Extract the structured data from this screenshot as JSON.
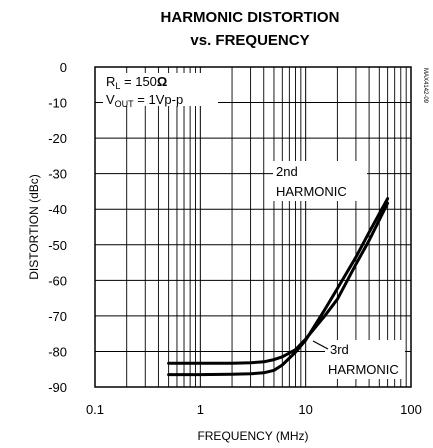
{
  "chart_data": {
    "type": "line",
    "title_line1": "HARMONIC DISTORTION",
    "title_line2": "vs. FREQUENCY",
    "xlabel": "FREQUENCY (MHz)",
    "ylabel": "DISTORTION (dBc)",
    "x_scale": "log",
    "xlim": [
      0.1,
      100
    ],
    "ylim": [
      -90,
      0
    ],
    "x_ticks": [
      "0.1",
      "1",
      "10",
      "100"
    ],
    "x_tick_values": [
      0.1,
      1,
      10,
      100
    ],
    "y_ticks": [
      "0",
      "-10",
      "-20",
      "-30",
      "-40",
      "-50",
      "-60",
      "-70",
      "-80",
      "-90"
    ],
    "y_tick_values": [
      0,
      -10,
      -20,
      -30,
      -40,
      -50,
      -60,
      -70,
      -80,
      -90
    ],
    "grid": true,
    "conditions": {
      "rl": {
        "main": "R",
        "sub": "L",
        "rest": " = 150",
        "unit": "Ω"
      },
      "vout": {
        "main": "V",
        "sub": "OUT",
        "rest": " = 1Vp-p"
      }
    },
    "part_code": "MAX4142-09",
    "series": [
      {
        "label_line1": "2nd",
        "label_line2": "HARMONIC",
        "x": [
          0.5,
          1,
          2,
          3,
          4,
          5,
          6,
          8,
          10,
          15,
          20,
          30,
          40,
          60
        ],
        "y": [
          -86.5,
          -86.5,
          -86.4,
          -86.3,
          -86,
          -85.3,
          -83.8,
          -80.2,
          -76.8,
          -68.5,
          -62.3,
          -53.5,
          -46.5,
          -37
        ]
      },
      {
        "label_line1": "3rd",
        "label_line2": "HARMONIC",
        "x": [
          0.5,
          1,
          2,
          3,
          4,
          5,
          6,
          8,
          10,
          15,
          20,
          30,
          40,
          60
        ],
        "y": [
          -83.3,
          -83.3,
          -83.3,
          -83.2,
          -82.9,
          -82.3,
          -81.5,
          -79.5,
          -76.5,
          -70.2,
          -65.3,
          -55.5,
          -48.8,
          -38.3
        ]
      }
    ]
  },
  "colors": {
    "ink": "#000000",
    "background": "#ffffff"
  }
}
